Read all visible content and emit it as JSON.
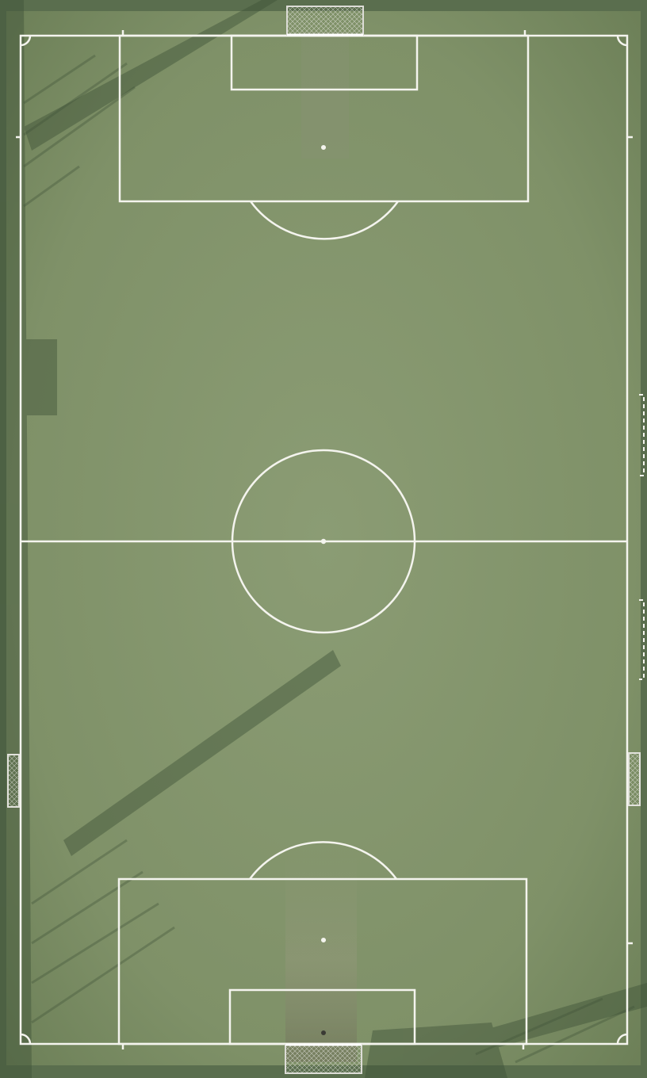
{
  "scene": {
    "subject": "soccer-pitch-aerial-view",
    "colors": {
      "turf": "#7f9168",
      "turf_light": "#8b9c74",
      "turf_dark": "#5e7250",
      "border": "#4d6344",
      "lines": "#f4f4ee",
      "shadow": "#3f5238",
      "net": "#dcdcd6"
    }
  }
}
